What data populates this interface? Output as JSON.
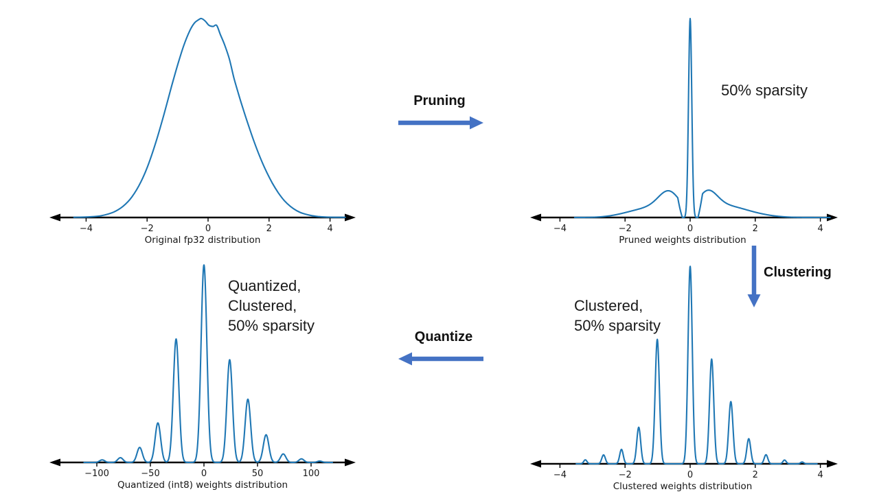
{
  "figure": {
    "background": "#ffffff",
    "description": "Model compression pipeline: original fp32 weights are pruned, clustered, then quantized to int8"
  },
  "colors": {
    "curve": "#1f77b4",
    "axis": "#000000",
    "arrow": "#4472c4",
    "text": "#161616"
  },
  "process_arrows": [
    {
      "id": "pruning",
      "label": "Pruning",
      "direction": "right"
    },
    {
      "id": "clustering",
      "label": "Clustering",
      "direction": "down"
    },
    {
      "id": "quantize",
      "label": "Quantize",
      "direction": "left"
    }
  ],
  "chart_data": [
    {
      "id": "fp32",
      "type": "line",
      "title": "Original fp32 distribution",
      "annotation": null,
      "xticks": [
        -4,
        -2,
        0,
        2,
        4
      ],
      "xtick_labels": [
        "−4",
        "−2",
        "0",
        "2",
        "4"
      ],
      "xlim": [
        -5.2,
        4.85
      ],
      "ylim": [
        0,
        1
      ],
      "y_axis_visible": false,
      "legend": "none",
      "grid": false,
      "curve": {
        "kind": "points",
        "points": [
          [
            -4.4,
            0.001
          ],
          [
            -3.9,
            0.003
          ],
          [
            -3.5,
            0.009
          ],
          [
            -3.1,
            0.027
          ],
          [
            -2.8,
            0.055
          ],
          [
            -2.5,
            0.103
          ],
          [
            -2.2,
            0.18
          ],
          [
            -1.95,
            0.27
          ],
          [
            -1.7,
            0.384
          ],
          [
            -1.45,
            0.516
          ],
          [
            -1.2,
            0.658
          ],
          [
            -1.0,
            0.766
          ],
          [
            -0.8,
            0.863
          ],
          [
            -0.6,
            0.939
          ],
          [
            -0.45,
            0.977
          ],
          [
            -0.32,
            0.993
          ],
          [
            -0.22,
            1.0
          ],
          [
            -0.1,
            0.988
          ],
          [
            0.03,
            0.966
          ],
          [
            0.16,
            0.96
          ],
          [
            0.28,
            0.966
          ],
          [
            0.4,
            0.92
          ],
          [
            0.55,
            0.865
          ],
          [
            0.7,
            0.795
          ],
          [
            0.85,
            0.7
          ],
          [
            1.0,
            0.62
          ],
          [
            1.15,
            0.545
          ],
          [
            1.3,
            0.475
          ],
          [
            1.5,
            0.385
          ],
          [
            1.7,
            0.305
          ],
          [
            1.9,
            0.235
          ],
          [
            2.1,
            0.175
          ],
          [
            2.3,
            0.125
          ],
          [
            2.5,
            0.085
          ],
          [
            2.7,
            0.056
          ],
          [
            2.9,
            0.035
          ],
          [
            3.1,
            0.021
          ],
          [
            3.35,
            0.011
          ],
          [
            3.6,
            0.005
          ],
          [
            3.9,
            0.002
          ],
          [
            4.5,
            0.001
          ]
        ]
      }
    },
    {
      "id": "pruned",
      "type": "line",
      "title": "Pruned weights distribution",
      "annotation": "50% sparsity",
      "xticks": [
        -4,
        -2,
        0,
        2,
        4
      ],
      "xtick_labels": [
        "−4",
        "−2",
        "0",
        "2",
        "4"
      ],
      "xlim": [
        -4.9,
        4.55
      ],
      "ylim": [
        0,
        1
      ],
      "y_axis_visible": false,
      "legend": "none",
      "grid": false,
      "curve": {
        "kind": "peaks",
        "sample_range": [
          -3.55,
          4.3
        ],
        "gap": [
          0.24,
          0.14
        ],
        "peaks": [
          [
            0,
            0.05,
            1.0,
            0
          ],
          [
            -0.63,
            0.33,
            0.105,
            1
          ],
          [
            -1.15,
            0.55,
            0.042,
            1
          ],
          [
            -1.9,
            0.5,
            0.012,
            1
          ],
          [
            0.52,
            0.3,
            0.098,
            1
          ],
          [
            1.05,
            0.6,
            0.055,
            1
          ],
          [
            2.0,
            0.55,
            0.011,
            1
          ]
        ]
      }
    },
    {
      "id": "clustered",
      "type": "line",
      "title": "Clustered weights distribution",
      "annotation": "Clustered,\n50% sparsity",
      "xticks": [
        -4,
        -2,
        0,
        2,
        4
      ],
      "xtick_labels": [
        "−4",
        "−2",
        "0",
        "2",
        "4"
      ],
      "xlim": [
        -4.9,
        4.55
      ],
      "ylim": [
        0,
        1
      ],
      "y_axis_visible": false,
      "legend": "none",
      "grid": false,
      "curve": {
        "kind": "peaks",
        "sample_range": [
          -3.5,
          3.9
        ],
        "peaks": [
          [
            -3.22,
            0.05,
            0.02
          ],
          [
            -2.66,
            0.055,
            0.045
          ],
          [
            -2.11,
            0.055,
            0.073
          ],
          [
            -1.58,
            0.06,
            0.185
          ],
          [
            -1.01,
            0.065,
            0.63
          ],
          [
            0.0,
            0.065,
            1.0
          ],
          [
            0.66,
            0.065,
            0.53
          ],
          [
            1.25,
            0.065,
            0.315
          ],
          [
            1.8,
            0.06,
            0.127
          ],
          [
            2.33,
            0.055,
            0.046
          ],
          [
            2.9,
            0.05,
            0.019
          ],
          [
            3.44,
            0.05,
            0.009
          ]
        ]
      }
    },
    {
      "id": "quantized",
      "type": "line",
      "title": "Quantized (int8) weights distribution",
      "annotation": "Quantized,\nClustered,\n50% sparsity",
      "xticks": [
        -100,
        -50,
        0,
        50,
        100
      ],
      "xtick_labels": [
        "−100",
        "−50",
        "0",
        "50",
        "100"
      ],
      "xlim": [
        -145,
        142
      ],
      "ylim": [
        0,
        1
      ],
      "y_axis_visible": false,
      "legend": "none",
      "grid": false,
      "curve": {
        "kind": "peaks",
        "sample_range": [
          -112,
          120
        ],
        "peaks": [
          [
            -95,
            2.4,
            0.013
          ],
          [
            -78,
            2.5,
            0.024
          ],
          [
            -60,
            2.5,
            0.076
          ],
          [
            -43,
            2.6,
            0.2
          ],
          [
            -26,
            2.6,
            0.625
          ],
          [
            0,
            2.7,
            1.0
          ],
          [
            24,
            2.6,
            0.52
          ],
          [
            41,
            2.6,
            0.32
          ],
          [
            58,
            2.6,
            0.14
          ],
          [
            74,
            2.5,
            0.043
          ],
          [
            91,
            2.4,
            0.018
          ],
          [
            108,
            2.3,
            0.007
          ]
        ]
      }
    }
  ]
}
